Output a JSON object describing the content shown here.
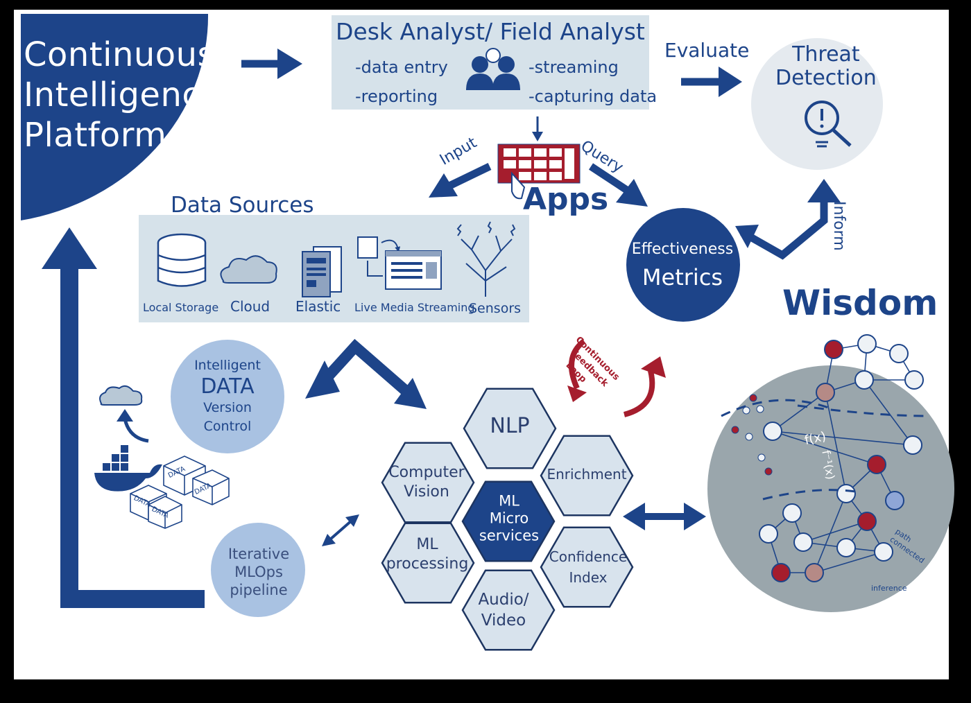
{
  "platform": {
    "title_lines": [
      "Continuous",
      "Intelligence",
      "Platform"
    ]
  },
  "analyst": {
    "title": "Desk Analyst/ Field Analyst",
    "left_items": [
      "-data entry",
      "-reporting"
    ],
    "right_items": [
      "-streaming",
      "-capturing data"
    ]
  },
  "flow_labels": {
    "evaluate": "Evaluate",
    "input": "Input",
    "query": "Query",
    "inform": "Inform"
  },
  "threat": {
    "title_lines": [
      "Threat",
      "Detection"
    ]
  },
  "apps": {
    "label": "Apps"
  },
  "metrics": {
    "title_lines": [
      "Effectiveness",
      "Metrics"
    ]
  },
  "data_sources": {
    "title": "Data Sources",
    "items": [
      "Local Storage",
      "Cloud",
      "Elastic",
      "Live Media Streaming",
      "Sensors"
    ]
  },
  "data_version": {
    "title_lines": [
      "Intelligent",
      "DATA",
      "Version",
      "Control"
    ],
    "box_label": "DATA"
  },
  "mlops": {
    "title_lines": [
      "Iterative",
      "MLOps",
      "pipeline"
    ]
  },
  "feedback": {
    "title_lines": [
      "Continuous",
      "Feedback",
      "Loop"
    ]
  },
  "hexagons": {
    "center": "ML\nMicro\nservices",
    "nlp": "NLP",
    "computer_vision": "Computer\nVision",
    "enrichment": "Enrichment",
    "ml_processing": "ML\nprocessing",
    "confidence": "Confidence\nIndex",
    "audio_video": "Audio/\nVideo"
  },
  "wisdom": {
    "title": "Wisdom",
    "annotations": {
      "fx": "f(x)",
      "finv": "f⁻¹(x)",
      "path": "path\nconnected",
      "inference": "inference"
    }
  },
  "colors": {
    "navy": "#1d4489",
    "light_panel": "#d6e2ea",
    "light_circle": "#a9c2e2",
    "hex_fill": "#d8e3ed",
    "wisdom_grey": "#9aa6ac",
    "feedback_red": "#a51d2d"
  }
}
